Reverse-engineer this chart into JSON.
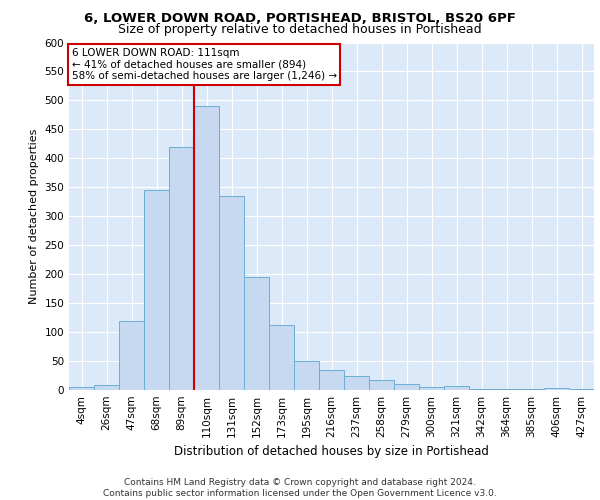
{
  "title_line1": "6, LOWER DOWN ROAD, PORTISHEAD, BRISTOL, BS20 6PF",
  "title_line2": "Size of property relative to detached houses in Portishead",
  "xlabel": "Distribution of detached houses by size in Portishead",
  "ylabel": "Number of detached properties",
  "categories": [
    "4sqm",
    "26sqm",
    "47sqm",
    "68sqm",
    "89sqm",
    "110sqm",
    "131sqm",
    "152sqm",
    "173sqm",
    "195sqm",
    "216sqm",
    "237sqm",
    "258sqm",
    "279sqm",
    "300sqm",
    "321sqm",
    "342sqm",
    "364sqm",
    "385sqm",
    "406sqm",
    "427sqm"
  ],
  "values": [
    5,
    8,
    120,
    345,
    420,
    490,
    335,
    195,
    113,
    50,
    35,
    25,
    17,
    10,
    5,
    7,
    2,
    1,
    1,
    3,
    2
  ],
  "bar_color": "#c6d9f1",
  "bar_edge_color": "#6baed6",
  "marker_line_index": 5,
  "marker_color": "#cc0000",
  "annotation_lines": [
    "6 LOWER DOWN ROAD: 111sqm",
    "← 41% of detached houses are smaller (894)",
    "58% of semi-detached houses are larger (1,246) →"
  ],
  "annotation_box_color": "#cc0000",
  "ylim": [
    0,
    600
  ],
  "yticks": [
    0,
    50,
    100,
    150,
    200,
    250,
    300,
    350,
    400,
    450,
    500,
    550,
    600
  ],
  "footer_line1": "Contains HM Land Registry data © Crown copyright and database right 2024.",
  "footer_line2": "Contains public sector information licensed under the Open Government Licence v3.0.",
  "plot_bg_color": "#dce9f8",
  "fig_bg_color": "#ffffff",
  "title1_fontsize": 9.5,
  "title2_fontsize": 9,
  "ylabel_fontsize": 8,
  "xlabel_fontsize": 8.5,
  "tick_fontsize": 7.5,
  "footer_fontsize": 6.5
}
